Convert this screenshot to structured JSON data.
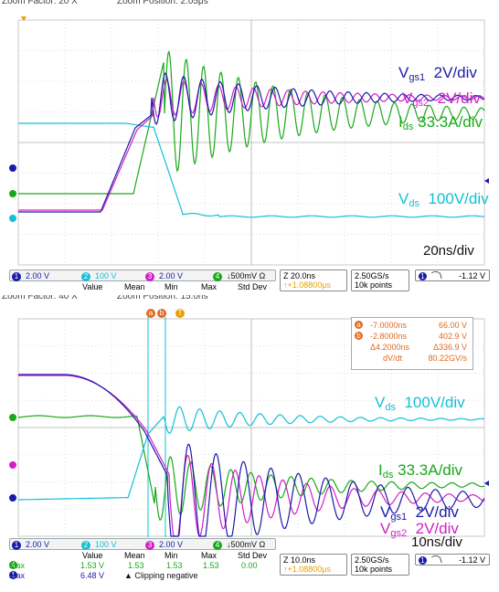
{
  "top": {
    "header": {
      "zoom_factor": "Zoom Factor: 20 X",
      "zoom_position": "Zoom Position: 2.05μs"
    },
    "labels": {
      "vgs1": {
        "main": "V",
        "sub": "gs1",
        "scale": "2V/div",
        "color": "#1a1aa8"
      },
      "vgs2": {
        "main": "V",
        "sub": "gs2",
        "scale": "2V/div",
        "color": "#d21ec8"
      },
      "ids": {
        "main": "I",
        "sub": "ds",
        "scale": "33.3A/div",
        "color": "#1aa81a"
      },
      "vds": {
        "main": "V",
        "sub": "ds",
        "scale": "100V/div",
        "color": "#12c0d8"
      },
      "timebase": "20ns/div"
    },
    "channels": [
      {
        "num": "1",
        "value": "2.00 V",
        "color": "#1a1aa8"
      },
      {
        "num": "2",
        "value": "100 V",
        "color": "#12c0d8"
      },
      {
        "num": "3",
        "value": "2.00 V",
        "color": "#d21ec8"
      },
      {
        "num": "4",
        "value": "↓500mV Ω",
        "color": "#1aa81a"
      }
    ],
    "timebox": {
      "main": "Z 20.0ns",
      "sub": "↑+1.08800μs"
    },
    "sampling": {
      "rate": "2.50GS/s",
      "points": "10k points"
    },
    "trigger": {
      "num": "1",
      "slope": "⌒\\",
      "level": "-1.12 V"
    },
    "meas_headers": [
      "Value",
      "Mean",
      "Min",
      "Max",
      "Std Dev"
    ]
  },
  "bottom": {
    "header": {
      "zoom_factor": "Zoom Factor: 40 X",
      "zoom_position": "Zoom Position: 15.0ns"
    },
    "cursor_tags": [
      "a",
      "b",
      "T"
    ],
    "cursor_box": {
      "a_time": "-7.0000ns",
      "a_value": "66.00 V",
      "b_time": "-2.8000ns",
      "b_value": "402.9 V",
      "delta_time": "Δ4.2000ns",
      "delta_value": "Δ336.9 V",
      "dvdt_label": "dV/dt",
      "dvdt_value": "80.22GV/s"
    },
    "labels": {
      "vds": {
        "main": "V",
        "sub": "ds",
        "scale": "100V/div",
        "color": "#12c0d8"
      },
      "ids": {
        "main": "I",
        "sub": "ds",
        "scale": "33.3A/div",
        "color": "#1aa81a"
      },
      "vgs1": {
        "main": "V",
        "sub": "gs1",
        "scale": "2V/div",
        "color": "#1a1aa8"
      },
      "vgs2": {
        "main": "V",
        "sub": "gs2",
        "scale": "2V/div",
        "color": "#d21ec8"
      },
      "timebase": "10ns/div"
    },
    "channels": [
      {
        "num": "1",
        "value": "2.00 V",
        "color": "#1a1aa8"
      },
      {
        "num": "2",
        "value": "100 V",
        "color": "#12c0d8"
      },
      {
        "num": "3",
        "value": "2.00 V",
        "color": "#d21ec8"
      },
      {
        "num": "4",
        "value": "↓500mV Ω",
        "color": "#1aa81a"
      }
    ],
    "timebox": {
      "main": "Z 10.0ns",
      "sub": "↑+1.08800μs"
    },
    "sampling": {
      "rate": "2.50GS/s",
      "points": "10k points"
    },
    "trigger": {
      "num": "1",
      "slope": "⌒\\",
      "level": "-1.12 V"
    },
    "meas": {
      "headers": [
        "Value",
        "Mean",
        "Min",
        "Max",
        "Std Dev"
      ],
      "rows": [
        {
          "ch": "4",
          "name": "Max",
          "color": "#1aa81a",
          "value": "1.53 V",
          "mean": "1.53",
          "min": "1.53",
          "max": "1.53",
          "std": "0.00"
        },
        {
          "ch": "1",
          "name": "Max",
          "color": "#1a1aa8",
          "value": "6.48 V",
          "note": "▲ Clipping negative"
        }
      ]
    }
  }
}
